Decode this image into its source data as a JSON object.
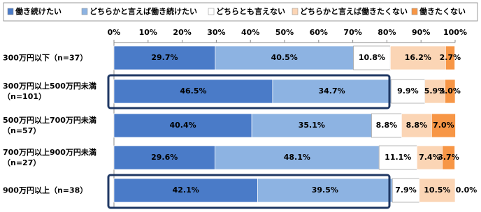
{
  "chart_data": {
    "type": "stacked-bar-horizontal",
    "categories": [
      "300万円以下（n=37）",
      "300万円以上500万円未満\n（n=101）",
      "500万円以上700万円未満\n（n=57）",
      "700万円以上900万円未満\n（n=27）",
      "900万円以上（n=38）"
    ],
    "xlim": [
      0,
      100
    ],
    "xticks": [
      {
        "value": 0,
        "label": "0%"
      },
      {
        "value": 10,
        "label": "10%"
      },
      {
        "value": 20,
        "label": "20%"
      },
      {
        "value": 30,
        "label": "30%"
      },
      {
        "value": 40,
        "label": "40%"
      },
      {
        "value": 50,
        "label": "50%"
      },
      {
        "value": 60,
        "label": "60%"
      },
      {
        "value": 70,
        "label": "70%"
      },
      {
        "value": 80,
        "label": "80%"
      },
      {
        "value": 90,
        "label": "90%"
      },
      {
        "value": 100,
        "label": "100%"
      }
    ],
    "series": [
      {
        "name": "働き続けたい",
        "color": "#4a7bc8",
        "values": [
          29.7,
          46.5,
          40.4,
          29.6,
          42.1
        ],
        "value_labels": [
          "29.7%",
          "46.5%",
          "40.4%",
          "29.6%",
          "42.1%"
        ]
      },
      {
        "name": "どちらかと言えば働き続けたい",
        "color": "#8db3e2",
        "values": [
          40.5,
          34.7,
          35.1,
          48.1,
          39.5
        ],
        "value_labels": [
          "40.5%",
          "34.7%",
          "35.1%",
          "48.1%",
          "39.5%"
        ]
      },
      {
        "name": "どちらとも言えない",
        "color": "#ffffff",
        "values": [
          10.8,
          9.9,
          8.8,
          11.1,
          7.9
        ],
        "value_labels": [
          "10.8%",
          "9.9%",
          "8.8%",
          "11.1%",
          "7.9%"
        ]
      },
      {
        "name": "どちらかと言えば働きたくない",
        "color": "#fbd5b5",
        "values": [
          16.2,
          5.9,
          8.8,
          7.4,
          10.5
        ],
        "value_labels": [
          "16.2%",
          "5.9%",
          "8.8%",
          "7.4%",
          "10.5%"
        ]
      },
      {
        "name": "働きたくない",
        "color": "#f79646",
        "values": [
          2.7,
          3.0,
          7.0,
          3.7,
          0.0
        ],
        "value_labels": [
          "2.7%",
          "3.0%",
          "7.0%",
          "3.7%",
          "0.0%"
        ]
      }
    ]
  }
}
